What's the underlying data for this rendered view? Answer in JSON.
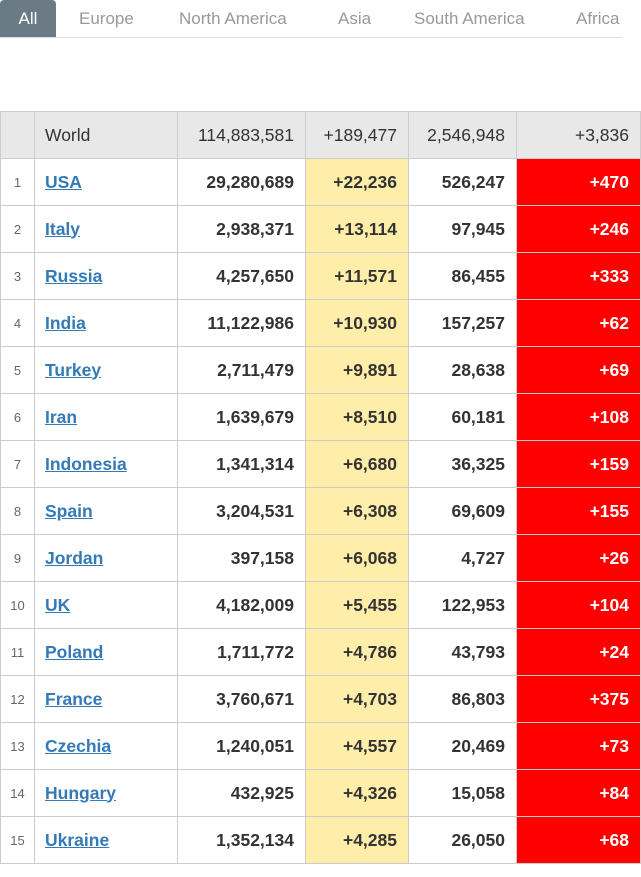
{
  "tabs": [
    {
      "label": "All",
      "active": true
    },
    {
      "label": "Europe",
      "active": false
    },
    {
      "label": "North America",
      "active": false
    },
    {
      "label": "Asia",
      "active": false
    },
    {
      "label": "South America",
      "active": false
    },
    {
      "label": "Africa",
      "active": false
    }
  ],
  "world": {
    "label": "World",
    "total_cases": "114,883,581",
    "new_cases": "+189,477",
    "total_deaths": "2,546,948",
    "new_deaths": "+3,836"
  },
  "rows": [
    {
      "num": "1",
      "country": "USA",
      "total_cases": "29,280,689",
      "new_cases": "+22,236",
      "total_deaths": "526,247",
      "new_deaths": "+470"
    },
    {
      "num": "2",
      "country": "Italy",
      "total_cases": "2,938,371",
      "new_cases": "+13,114",
      "total_deaths": "97,945",
      "new_deaths": "+246"
    },
    {
      "num": "3",
      "country": "Russia",
      "total_cases": "4,257,650",
      "new_cases": "+11,571",
      "total_deaths": "86,455",
      "new_deaths": "+333"
    },
    {
      "num": "4",
      "country": "India",
      "total_cases": "11,122,986",
      "new_cases": "+10,930",
      "total_deaths": "157,257",
      "new_deaths": "+62"
    },
    {
      "num": "5",
      "country": "Turkey",
      "total_cases": "2,711,479",
      "new_cases": "+9,891",
      "total_deaths": "28,638",
      "new_deaths": "+69"
    },
    {
      "num": "6",
      "country": "Iran",
      "total_cases": "1,639,679",
      "new_cases": "+8,510",
      "total_deaths": "60,181",
      "new_deaths": "+108"
    },
    {
      "num": "7",
      "country": "Indonesia",
      "total_cases": "1,341,314",
      "new_cases": "+6,680",
      "total_deaths": "36,325",
      "new_deaths": "+159"
    },
    {
      "num": "8",
      "country": "Spain",
      "total_cases": "3,204,531",
      "new_cases": "+6,308",
      "total_deaths": "69,609",
      "new_deaths": "+155"
    },
    {
      "num": "9",
      "country": "Jordan",
      "total_cases": "397,158",
      "new_cases": "+6,068",
      "total_deaths": "4,727",
      "new_deaths": "+26"
    },
    {
      "num": "10",
      "country": "UK",
      "total_cases": "4,182,009",
      "new_cases": "+5,455",
      "total_deaths": "122,953",
      "new_deaths": "+104"
    },
    {
      "num": "11",
      "country": "Poland",
      "total_cases": "1,711,772",
      "new_cases": "+4,786",
      "total_deaths": "43,793",
      "new_deaths": "+24"
    },
    {
      "num": "12",
      "country": "France",
      "total_cases": "3,760,671",
      "new_cases": "+4,703",
      "total_deaths": "86,803",
      "new_deaths": "+375"
    },
    {
      "num": "13",
      "country": "Czechia",
      "total_cases": "1,240,051",
      "new_cases": "+4,557",
      "total_deaths": "20,469",
      "new_deaths": "+73"
    },
    {
      "num": "14",
      "country": "Hungary",
      "total_cases": "432,925",
      "new_cases": "+4,326",
      "total_deaths": "15,058",
      "new_deaths": "+84"
    },
    {
      "num": "15",
      "country": "Ukraine",
      "total_cases": "1,352,134",
      "new_cases": "+4,285",
      "total_deaths": "26,050",
      "new_deaths": "+68"
    }
  ],
  "colors": {
    "new_cases_bg": "#ffeeaa",
    "new_deaths_bg": "#ff0000",
    "link": "#337ab7",
    "active_tab_bg": "#6b7b85"
  }
}
